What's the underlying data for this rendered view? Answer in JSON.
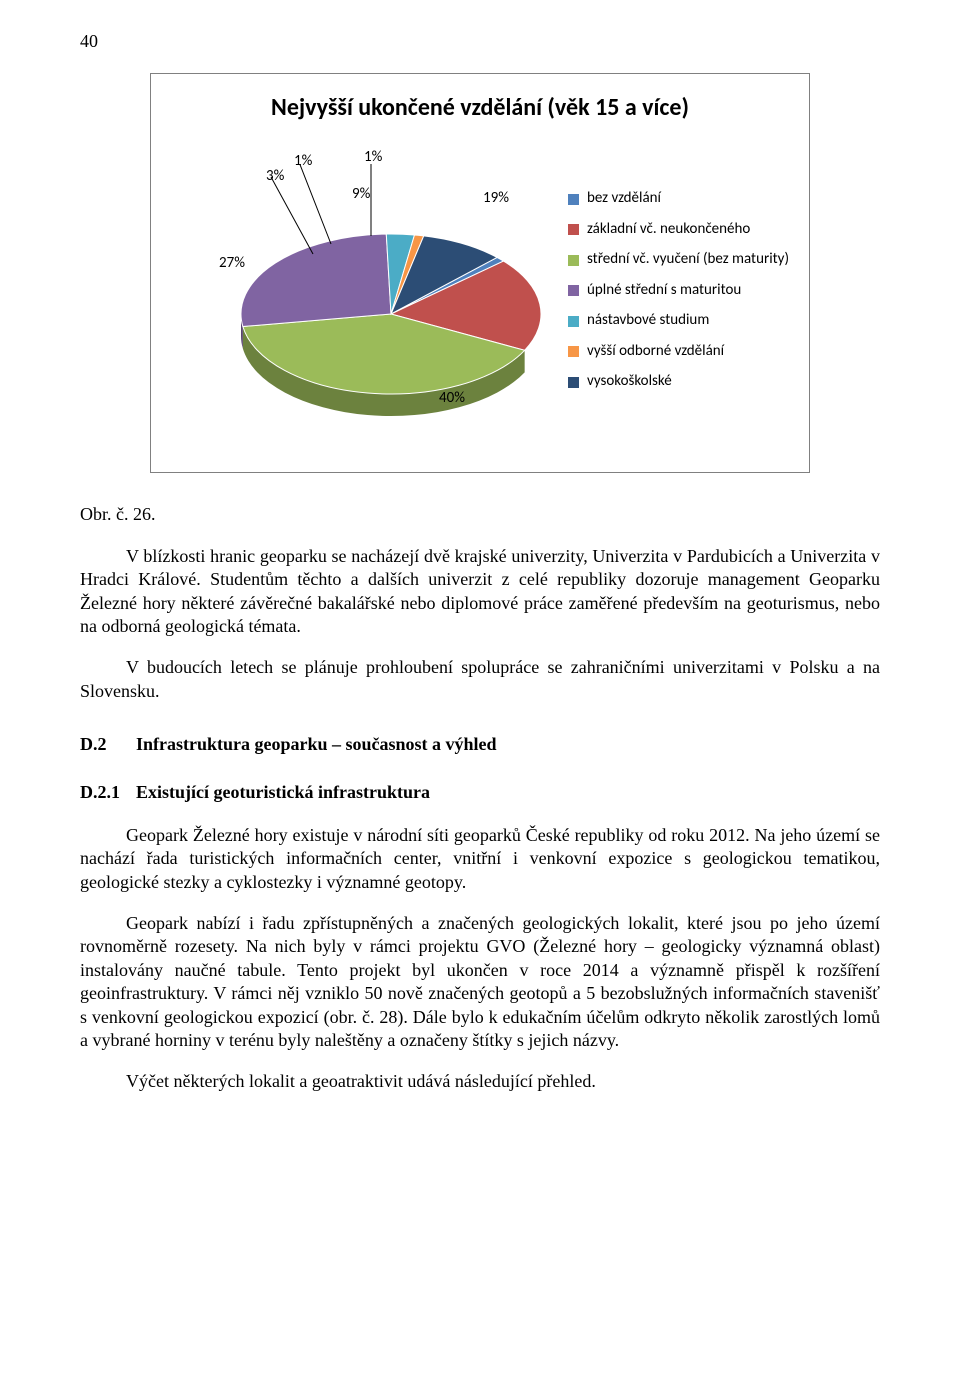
{
  "page_number": "40",
  "chart": {
    "type": "pie",
    "title": "Nejvyšší ukončené vzdělání (věk 15 a více)",
    "title_fontsize": 24,
    "title_fontweight": "bold",
    "background_color": "#ffffff",
    "border_color": "#808080",
    "font_family": "Calibri",
    "label_fontsize": 15,
    "slices": [
      {
        "label": "bez vzdělání",
        "value_pct": 1,
        "callout": "1%",
        "color": "#4f81bd"
      },
      {
        "label": "základní vč. neukončeného",
        "value_pct": 19,
        "callout": "19%",
        "color": "#c0504d"
      },
      {
        "label": "střední vč. vyučení (bez maturity)",
        "value_pct": 40,
        "callout": "40%",
        "color": "#9bbb59"
      },
      {
        "label": "úplné střední s maturitou",
        "value_pct": 27,
        "callout": "27%",
        "color": "#8064a2"
      },
      {
        "label": "nástavbové studium",
        "value_pct": 3,
        "callout": "3%",
        "color": "#4bacc6"
      },
      {
        "label": "vyšší odborné vzdělání",
        "value_pct": 1,
        "callout": "1%",
        "color": "#f79646"
      },
      {
        "label": "vysokoškolské",
        "value_pct": 9,
        "callout": "9%",
        "color": "#2c4d75"
      }
    ],
    "pie_3d": true,
    "tilt_deg": 55,
    "start_angle_deg": 315
  },
  "fig_label": "Obr. č. 26.",
  "paragraphs": {
    "p1": "V blízkosti hranic geoparku se nacházejí dvě krajské univerzity, Univerzita v Pardubicích a Univerzita v Hradci Králové. Studentům těchto a dalších univerzit z celé republiky dozoruje management Geoparku Železné hory některé závěrečné bakalářské nebo diplomové práce zaměřené především na geoturismus, nebo na odborná geologická témata.",
    "p2": "V budoucích letech se plánuje prohloubení spolupráce se zahraničními univerzitami v Polsku a na Slovensku.",
    "p3": "Geopark Železné hory existuje v národní síti geoparků České republiky od roku 2012. Na jeho území se nachází řada turistických informačních center, vnitřní i venkovní expozice s geologickou tematikou, geologické stezky a cyklostezky i významné geotopy.",
    "p4": "Geopark nabízí i řadu zpřístupněných a značených geologických lokalit, které jsou po jeho území rovnoměrně rozesety. Na nich byly v rámci projektu GVO (Železné hory – geologicky významná oblast) instalovány naučné tabule. Tento projekt byl ukončen v roce 2014 a významně přispěl k rozšíření geoinfrastruktury. V rámci něj vzniklo 50 nově značených geotopů a 5 bezobslužných informačních stavenišť s venkovní geologickou expozicí (obr. č. 28). Dále bylo k edukačním účelům odkryto několik zarostlých lomů a vybrané horniny v terénu byly naleštěny a označeny štítky s jejich názvy.",
    "p5": "Výčet některých lokalit a geoatraktivit udává následující přehled."
  },
  "headings": {
    "d2_num": "D.2",
    "d2_title": "Infrastruktura geoparku – současnost a výhled",
    "d21_num": "D.2.1",
    "d21_title": "Existující geoturistická infrastruktura"
  }
}
